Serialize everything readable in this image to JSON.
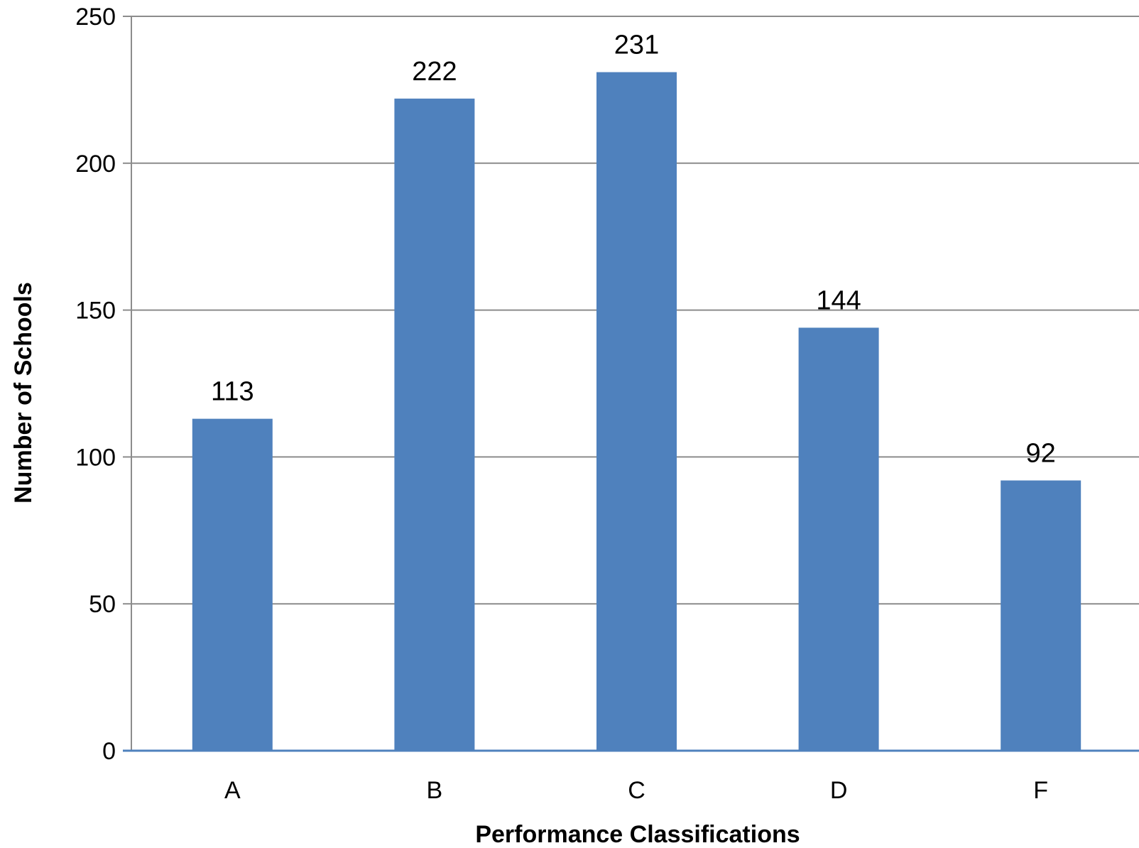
{
  "chart_data": {
    "type": "bar",
    "title": "",
    "xlabel": "Performance Classifications",
    "ylabel": "Number of Schools",
    "categories": [
      "A",
      "B",
      "C",
      "D",
      "F"
    ],
    "values": [
      113,
      222,
      231,
      144,
      92
    ],
    "data_labels": [
      "113",
      "222",
      "231",
      "144",
      "92"
    ],
    "ylim": [
      0,
      250
    ],
    "yticks": [
      0,
      50,
      100,
      150,
      200,
      250
    ],
    "ytick_labels": [
      "0",
      "50",
      "100",
      "150",
      "200",
      "250"
    ],
    "grid": true,
    "legend": "none",
    "colors": {
      "bar": "#4F81BD",
      "grid": "#8C8C8C",
      "axis": "#8C8C8C",
      "x_axis": "#4F81BD"
    }
  }
}
